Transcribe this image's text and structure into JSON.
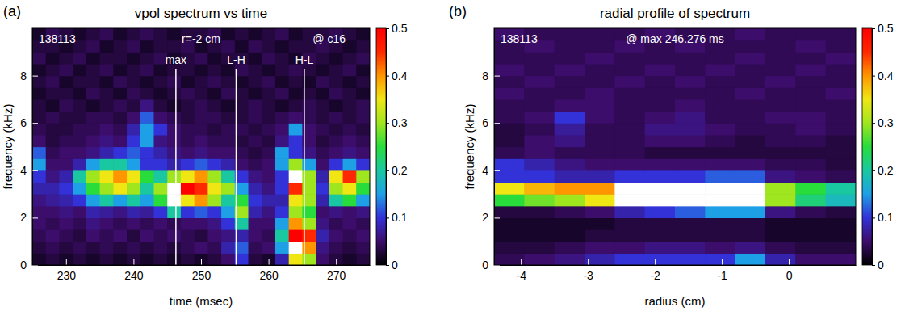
{
  "chart_data": [
    {
      "type": "heatmap",
      "panel_label": "(a)",
      "title": "vpol spectrum vs time",
      "x_label": "time (msec)",
      "y_label": "frequency (kHz)",
      "annotations": [
        "138113",
        "r=-2 cm",
        "@ c16"
      ],
      "markers": [
        {
          "label": "max",
          "x": 246.276
        },
        {
          "label": "L-H",
          "x": 255.2
        },
        {
          "label": "H-L",
          "x": 265.3
        }
      ],
      "xlim": [
        225,
        275
      ],
      "xticks": [
        230,
        240,
        250,
        260,
        270
      ],
      "ylim": [
        0,
        10
      ],
      "yticks": [
        0,
        2,
        4,
        6,
        8
      ],
      "x_bins": [
        225,
        227,
        229,
        231,
        233,
        235,
        237,
        239,
        241,
        243,
        245,
        247,
        249,
        251,
        253,
        255,
        257,
        259,
        261,
        263,
        265,
        267,
        269,
        271,
        273,
        275
      ],
      "y_bins": [
        0,
        0.5,
        1,
        1.5,
        2,
        2.5,
        3,
        3.5,
        4,
        4.5,
        5,
        5.5,
        6,
        6.5,
        7,
        7.5,
        8,
        8.5,
        9,
        9.5,
        10
      ],
      "cells": [
        [
          0.02,
          0.03,
          0.02,
          0.03,
          0.02,
          0.03,
          0.02,
          0.03,
          0.02,
          0.03,
          0.02,
          0.03,
          0.02,
          0.03,
          0.05,
          0.1,
          0.03,
          0.02,
          0.08,
          0.35,
          0.3,
          0.05,
          0.03,
          0.02,
          0.03
        ],
        [
          0.03,
          0.04,
          0.03,
          0.04,
          0.03,
          0.04,
          0.03,
          0.04,
          0.03,
          0.04,
          0.03,
          0.04,
          0.05,
          0.04,
          0.08,
          0.12,
          0.04,
          0.05,
          0.15,
          0.55,
          0.4,
          0.06,
          0.04,
          0.03,
          0.04
        ],
        [
          0.04,
          0.05,
          0.04,
          0.03,
          0.05,
          0.04,
          0.05,
          0.03,
          0.05,
          0.04,
          0.05,
          0.04,
          0.03,
          0.05,
          0.06,
          0.08,
          0.05,
          0.04,
          0.2,
          0.5,
          0.45,
          0.08,
          0.05,
          0.04,
          0.05
        ],
        [
          0.05,
          0.04,
          0.05,
          0.04,
          0.06,
          0.05,
          0.04,
          0.05,
          0.04,
          0.05,
          0.04,
          0.05,
          0.05,
          0.06,
          0.1,
          0.2,
          0.05,
          0.05,
          0.15,
          0.4,
          0.3,
          0.06,
          0.04,
          0.05,
          0.04
        ],
        [
          0.05,
          0.05,
          0.06,
          0.05,
          0.08,
          0.07,
          0.06,
          0.08,
          0.07,
          0.1,
          0.2,
          0.1,
          0.12,
          0.1,
          0.15,
          0.3,
          0.08,
          0.06,
          0.1,
          0.3,
          0.25,
          0.05,
          0.06,
          0.05,
          0.06
        ],
        [
          0.06,
          0.07,
          0.08,
          0.1,
          0.15,
          0.2,
          0.15,
          0.2,
          0.15,
          0.25,
          0.55,
          0.35,
          0.4,
          0.3,
          0.2,
          0.25,
          0.1,
          0.08,
          0.08,
          0.35,
          0.3,
          0.08,
          0.2,
          0.25,
          0.15
        ],
        [
          0.08,
          0.08,
          0.1,
          0.15,
          0.25,
          0.3,
          0.35,
          0.3,
          0.2,
          0.3,
          0.6,
          0.5,
          0.45,
          0.35,
          0.3,
          0.15,
          0.08,
          0.06,
          0.1,
          0.45,
          0.3,
          0.1,
          0.3,
          0.35,
          0.25
        ],
        [
          0.1,
          0.06,
          0.08,
          0.2,
          0.3,
          0.35,
          0.4,
          0.35,
          0.25,
          0.2,
          0.3,
          0.35,
          0.4,
          0.3,
          0.2,
          0.1,
          0.06,
          0.05,
          0.1,
          0.55,
          0.3,
          0.08,
          0.35,
          0.45,
          0.3
        ],
        [
          0.15,
          0.05,
          0.05,
          0.08,
          0.15,
          0.2,
          0.2,
          0.15,
          0.1,
          0.1,
          0.08,
          0.1,
          0.12,
          0.1,
          0.08,
          0.05,
          0.04,
          0.05,
          0.15,
          0.3,
          0.15,
          0.05,
          0.1,
          0.15,
          0.1
        ],
        [
          0.12,
          0.04,
          0.05,
          0.05,
          0.06,
          0.08,
          0.1,
          0.12,
          0.1,
          0.08,
          0.06,
          0.05,
          0.06,
          0.05,
          0.05,
          0.04,
          0.03,
          0.04,
          0.15,
          0.1,
          0.06,
          0.04,
          0.05,
          0.06,
          0.05
        ],
        [
          0.05,
          0.03,
          0.04,
          0.04,
          0.05,
          0.06,
          0.05,
          0.1,
          0.15,
          0.06,
          0.05,
          0.04,
          0.05,
          0.04,
          0.04,
          0.03,
          0.04,
          0.03,
          0.06,
          0.1,
          0.05,
          0.03,
          0.04,
          0.05,
          0.04
        ],
        [
          0.04,
          0.03,
          0.03,
          0.04,
          0.04,
          0.05,
          0.04,
          0.08,
          0.15,
          0.1,
          0.05,
          0.04,
          0.04,
          0.03,
          0.04,
          0.04,
          0.03,
          0.04,
          0.05,
          0.15,
          0.05,
          0.04,
          0.03,
          0.04,
          0.03
        ],
        [
          0.03,
          0.04,
          0.03,
          0.03,
          0.04,
          0.04,
          0.03,
          0.05,
          0.12,
          0.05,
          0.04,
          0.03,
          0.04,
          0.04,
          0.03,
          0.03,
          0.04,
          0.03,
          0.04,
          0.05,
          0.04,
          0.03,
          0.04,
          0.03,
          0.04
        ],
        [
          0.03,
          0.02,
          0.04,
          0.03,
          0.02,
          0.03,
          0.04,
          0.03,
          0.06,
          0.03,
          0.02,
          0.03,
          0.04,
          0.03,
          0.02,
          0.03,
          0.04,
          0.03,
          0.02,
          0.03,
          0.04,
          0.03,
          0.02,
          0.03,
          0.04
        ],
        [
          0.02,
          0.03,
          0.03,
          0.02,
          0.04,
          0.03,
          0.02,
          0.04,
          0.03,
          0.02,
          0.03,
          0.04,
          0.03,
          0.02,
          0.04,
          0.03,
          0.02,
          0.03,
          0.04,
          0.02,
          0.03,
          0.02,
          0.04,
          0.03,
          0.02
        ],
        [
          0.03,
          0.04,
          0.02,
          0.03,
          0.03,
          0.02,
          0.04,
          0.03,
          0.02,
          0.03,
          0.04,
          0.02,
          0.03,
          0.04,
          0.03,
          0.02,
          0.03,
          0.04,
          0.02,
          0.03,
          0.02,
          0.04,
          0.03,
          0.02,
          0.03
        ],
        [
          0.02,
          0.03,
          0.04,
          0.02,
          0.03,
          0.04,
          0.02,
          0.03,
          0.04,
          0.02,
          0.03,
          0.03,
          0.02,
          0.03,
          0.02,
          0.04,
          0.03,
          0.02,
          0.03,
          0.04,
          0.03,
          0.02,
          0.03,
          0.04,
          0.02
        ],
        [
          0.04,
          0.02,
          0.03,
          0.04,
          0.02,
          0.03,
          0.03,
          0.02,
          0.03,
          0.04,
          0.02,
          0.03,
          0.04,
          0.02,
          0.03,
          0.03,
          0.02,
          0.04,
          0.03,
          0.02,
          0.04,
          0.03,
          0.02,
          0.03,
          0.04
        ],
        [
          0.03,
          0.03,
          0.02,
          0.03,
          0.04,
          0.02,
          0.03,
          0.04,
          0.02,
          0.03,
          0.03,
          0.04,
          0.02,
          0.03,
          0.04,
          0.02,
          0.04,
          0.03,
          0.02,
          0.03,
          0.03,
          0.04,
          0.03,
          0.02,
          0.03
        ],
        [
          0.02,
          0.04,
          0.03,
          0.02,
          0.03,
          0.04,
          0.02,
          0.03,
          0.04,
          0.03,
          0.02,
          0.03,
          0.03,
          0.04,
          0.02,
          0.03,
          0.02,
          0.03,
          0.04,
          0.02,
          0.03,
          0.03,
          0.04,
          0.03,
          0.02
        ]
      ],
      "colorbar_range": [
        0,
        0.5
      ],
      "colorbar_ticks": [
        0,
        0.1,
        0.2,
        0.3,
        0.4,
        0.5
      ]
    },
    {
      "type": "heatmap",
      "panel_label": "(b)",
      "title": "radial profile of spectrum",
      "x_label": "radius (cm)",
      "y_label": "frequency (kHz)",
      "annotations": [
        "138113",
        "@ max 246.276 ms"
      ],
      "markers": [],
      "xlim": [
        -4.4,
        1.0
      ],
      "xticks": [
        -4,
        -3,
        -2,
        -1,
        0
      ],
      "ylim": [
        0,
        10
      ],
      "yticks": [
        0,
        2,
        4,
        6,
        8
      ],
      "x_bins": [
        -4.4,
        -3.95,
        -3.5,
        -3.05,
        -2.6,
        -2.15,
        -1.7,
        -1.25,
        -0.8,
        -0.35,
        0.1,
        0.55,
        1.0
      ],
      "y_bins": [
        0,
        0.5,
        1,
        1.5,
        2,
        2.5,
        3,
        3.5,
        4,
        4.5,
        5,
        5.5,
        6,
        6.5,
        7,
        7.5,
        8,
        8.5,
        9,
        9.5,
        10
      ],
      "cells": [
        [
          0.04,
          0.05,
          0.06,
          0.08,
          0.1,
          0.1,
          0.1,
          0.1,
          0.15,
          0.08,
          0.05,
          0.05
        ],
        [
          0.03,
          0.03,
          0.04,
          0.05,
          0.05,
          0.06,
          0.06,
          0.05,
          0.06,
          0.04,
          0.03,
          0.03
        ],
        [
          0.02,
          0.02,
          0.02,
          0.03,
          0.03,
          0.03,
          0.03,
          0.03,
          0.03,
          0.02,
          0.02,
          0.02
        ],
        [
          0.02,
          0.02,
          0.02,
          0.02,
          0.03,
          0.03,
          0.03,
          0.03,
          0.03,
          0.02,
          0.02,
          0.02
        ],
        [
          0.03,
          0.03,
          0.04,
          0.05,
          0.08,
          0.1,
          0.12,
          0.15,
          0.15,
          0.06,
          0.04,
          0.03
        ],
        [
          0.25,
          0.28,
          0.3,
          0.35,
          0.55,
          0.6,
          0.6,
          0.65,
          0.65,
          0.3,
          0.22,
          0.18
        ],
        [
          0.35,
          0.38,
          0.4,
          0.4,
          0.55,
          0.6,
          0.6,
          0.6,
          0.6,
          0.3,
          0.25,
          0.2
        ],
        [
          0.1,
          0.1,
          0.08,
          0.08,
          0.1,
          0.1,
          0.1,
          0.12,
          0.12,
          0.06,
          0.05,
          0.04
        ],
        [
          0.1,
          0.08,
          0.06,
          0.05,
          0.05,
          0.05,
          0.05,
          0.05,
          0.05,
          0.04,
          0.04,
          0.03
        ],
        [
          0.04,
          0.05,
          0.04,
          0.04,
          0.04,
          0.03,
          0.03,
          0.03,
          0.03,
          0.03,
          0.03,
          0.03
        ],
        [
          0.03,
          0.05,
          0.06,
          0.04,
          0.04,
          0.05,
          0.05,
          0.04,
          0.03,
          0.04,
          0.04,
          0.03
        ],
        [
          0.03,
          0.04,
          0.07,
          0.04,
          0.04,
          0.06,
          0.06,
          0.05,
          0.04,
          0.04,
          0.05,
          0.04
        ],
        [
          0.04,
          0.05,
          0.1,
          0.05,
          0.04,
          0.05,
          0.06,
          0.04,
          0.04,
          0.05,
          0.05,
          0.04
        ],
        [
          0.04,
          0.04,
          0.05,
          0.05,
          0.04,
          0.04,
          0.05,
          0.04,
          0.04,
          0.04,
          0.04,
          0.04
        ],
        [
          0.05,
          0.04,
          0.04,
          0.05,
          0.04,
          0.04,
          0.04,
          0.04,
          0.05,
          0.04,
          0.04,
          0.05
        ],
        [
          0.04,
          0.05,
          0.04,
          0.04,
          0.05,
          0.04,
          0.05,
          0.04,
          0.04,
          0.05,
          0.04,
          0.04
        ],
        [
          0.05,
          0.04,
          0.05,
          0.04,
          0.04,
          0.05,
          0.04,
          0.05,
          0.04,
          0.04,
          0.05,
          0.04
        ],
        [
          0.04,
          0.04,
          0.04,
          0.05,
          0.04,
          0.04,
          0.04,
          0.04,
          0.05,
          0.04,
          0.04,
          0.05
        ],
        [
          0.04,
          0.05,
          0.04,
          0.04,
          0.05,
          0.04,
          0.05,
          0.04,
          0.04,
          0.04,
          0.05,
          0.04
        ],
        [
          0.05,
          0.04,
          0.04,
          0.04,
          0.04,
          0.05,
          0.04,
          0.04,
          0.05,
          0.04,
          0.04,
          0.04
        ]
      ],
      "colorbar_range": [
        0,
        0.5
      ],
      "colorbar_ticks": [
        0,
        0.1,
        0.2,
        0.3,
        0.4,
        0.5
      ]
    }
  ]
}
